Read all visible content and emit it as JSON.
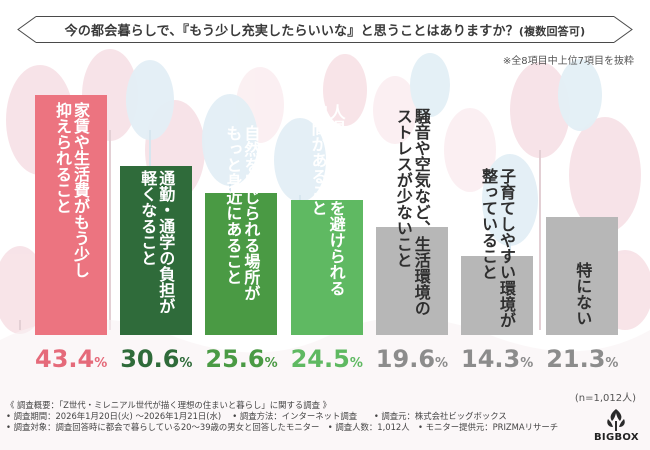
{
  "title": {
    "main": "今の都会暮らしで、『もう少し充実したらいいな』と思うことはありますか？",
    "suffix": "(複数回答可)"
  },
  "note": "※全8項目中上位7項目を抜粋",
  "sample_note": "(n=1,012人)",
  "footer": [
    "《 調査概要：「Z世代・ミレニアル世代が描く理想の住まいと暮らし」に関する調査 》",
    "• 調査期間：2026年1月20日(火) ～2026年1月21日(水)　 • 調査方法：インターネット調査　　• 調査元：株式会社ビッグボックス",
    "• 調査対象：調査回答時に都会で暮らしている20～39歳の男女と回答したモニター　• 調査人数：1,012人　• モニター提供元：PRIZMAリサーチ"
  ],
  "logo": {
    "text": "BIGBOX"
  },
  "colors": {
    "bars": [
      "#ec7480",
      "#2f6b3a",
      "#4a9a44",
      "#5fb962",
      "#b7b7b7",
      "#b7b7b7",
      "#b7b7b7"
    ],
    "values": [
      "#e56a7a",
      "#2f6b3a",
      "#4a9a44",
      "#5fb962",
      "#8c8c8c",
      "#8c8c8c",
      "#8c8c8c"
    ],
    "labels": [
      "#ffffff",
      "#ffffff",
      "#ffffff",
      "#ffffff",
      "#2f2f2f",
      "#2f2f2f",
      "#2f2f2f"
    ]
  },
  "chart_data": {
    "type": "bar",
    "title": "今の都会暮らしで、『もう少し充実したらいいな』と思うことはありますか？(複数回答可)",
    "categories": [
      "家賃や生活費がもう少し\n抑えられること",
      "通勤・通学の負担が\n軽くなること",
      "自然を感じられる場所が\nもっと身近にあること",
      "人混みや混雑を避けられる\n空間があること",
      "騒音や空気など、生活環境の\nストレスが少ないこと",
      "子育てしやすい環境が\n整っていること",
      "特にない"
    ],
    "values": [
      43.4,
      30.6,
      25.6,
      24.5,
      19.6,
      14.3,
      21.3
    ],
    "value_labels": [
      {
        "num": "43.4",
        "unit": "%"
      },
      {
        "num": "30.6",
        "unit": "%"
      },
      {
        "num": "25.6",
        "unit": "%"
      },
      {
        "num": "24.5",
        "unit": "%"
      },
      {
        "num": "19.6",
        "unit": "%"
      },
      {
        "num": "14.3",
        "unit": "%"
      },
      {
        "num": "21.3",
        "unit": "%"
      }
    ],
    "unit": "%",
    "ylim": [
      0,
      43.4
    ],
    "xlabel": "",
    "ylabel": ""
  }
}
